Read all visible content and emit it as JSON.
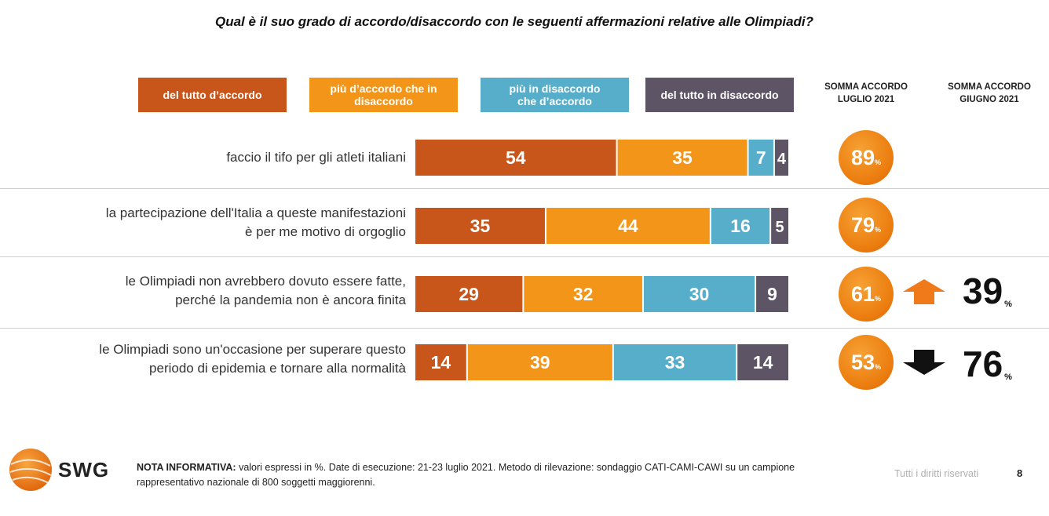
{
  "title": "Qual è il suo grado di accordo/disaccordo con le seguenti affermazioni relative alle Olimpiadi?",
  "legend": [
    {
      "label": "del tutto d’accordo",
      "color": "#c8561b"
    },
    {
      "label": "più d’accordo che in disaccordo",
      "color": "#f39519"
    },
    {
      "label": "più in disaccordo che d’accordo",
      "color": "#57aecb"
    },
    {
      "label": "del tutto in disaccordo",
      "color": "#5d5566"
    }
  ],
  "col_headers": {
    "july": "SOMMA ACCORDO LUGLIO 2021",
    "june": "SOMMA ACCORDO GIUGNO 2021"
  },
  "chart_data": {
    "type": "bar",
    "stacked": true,
    "orientation": "horizontal",
    "categories": [
      "faccio il tifo per gli atleti italiani",
      "la partecipazione dell'Italia a queste manifestazioni è per me motivo di orgoglio",
      "le Olimpiadi non avrebbero dovuto essere fatte, perché la pandemia non è ancora finita",
      "le Olimpiadi sono un'occasione per superare questo periodo di epidemia e tornare alla normalità"
    ],
    "series": [
      {
        "name": "del tutto d’accordo",
        "values": [
          54,
          35,
          29,
          14
        ]
      },
      {
        "name": "più d’accordo che in disaccordo",
        "values": [
          35,
          44,
          32,
          39
        ]
      },
      {
        "name": "più in disaccordo che d’accordo",
        "values": [
          7,
          16,
          30,
          33
        ]
      },
      {
        "name": "del tutto in disaccordo",
        "values": [
          4,
          5,
          9,
          14
        ]
      }
    ],
    "somma_luglio_2021": [
      89,
      79,
      61,
      53
    ],
    "somma_giugno_2021": [
      null,
      null,
      39,
      76
    ],
    "trend": [
      null,
      null,
      "up",
      "down"
    ],
    "unit": "%"
  },
  "rows": [
    {
      "label_lines": [
        "faccio il tifo per gli atleti italiani"
      ],
      "july": "89",
      "june": ""
    },
    {
      "label_lines": [
        "la partecipazione dell'Italia a queste manifestazioni",
        "è per me motivo di orgoglio"
      ],
      "july": "79",
      "june": ""
    },
    {
      "label_lines": [
        "le Olimpiadi non avrebbero dovuto essere fatte,",
        "perché la pandemia non è ancora finita"
      ],
      "july": "61",
      "june": "39"
    },
    {
      "label_lines": [
        "le Olimpiadi sono un'occasione per superare questo",
        "periodo di epidemia e tornare alla normalità"
      ],
      "july": "53",
      "june": "76"
    }
  ],
  "pct_symbol": "%",
  "arrow_colors": {
    "up": "#f07a1a",
    "down": "#111111"
  },
  "footer": {
    "logo_text": "SWG",
    "note_bold": "NOTA INFORMATIVA:",
    "note_text": " valori espressi in %. Date di esecuzione: 21-23 luglio 2021. Metodo di rilevazione: sondaggio CATI-CAMI-CAWI su un campione rappresentativo nazionale di 800 soggetti maggiorenni.",
    "rights": "Tutti i diritti riservati",
    "page_number": "8"
  }
}
